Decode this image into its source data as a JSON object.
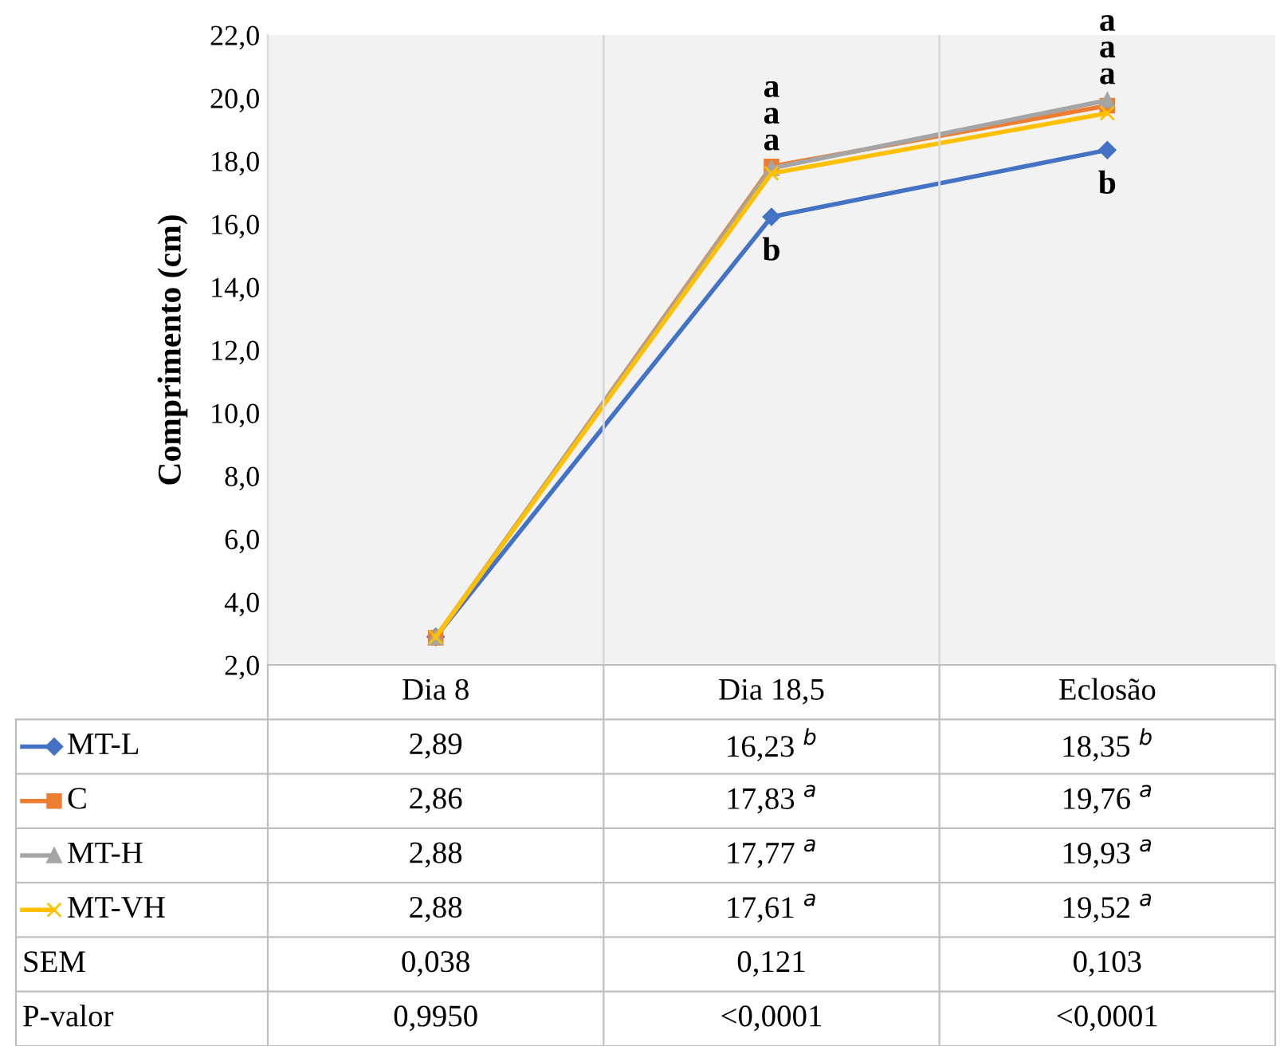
{
  "chart_data": {
    "type": "line",
    "ylabel": "Comprimento (cm)",
    "categories": [
      "Dia 8",
      "Dia 18,5",
      "Eclosão"
    ],
    "series": [
      {
        "name": "MT-L",
        "color": "#4472c4",
        "marker": "diamond",
        "values": [
          2.89,
          16.23,
          18.35
        ],
        "value_labels": [
          "2,89",
          "16,23 $^{b}$",
          "18,35 $^{b}$"
        ]
      },
      {
        "name": "C",
        "color": "#ed7d31",
        "marker": "square",
        "values": [
          2.86,
          17.83,
          19.76
        ],
        "value_labels": [
          "2,86",
          "17,83 $^{a}$",
          "19,76 $^{a}$"
        ]
      },
      {
        "name": "MT-H",
        "color": "#a5a5a5",
        "marker": "triangle",
        "values": [
          2.88,
          17.77,
          19.93
        ],
        "value_labels": [
          "2,88",
          "17,77 $^{a}$",
          "19,93 $^{a}$"
        ]
      },
      {
        "name": "MT-VH",
        "color": "#ffc000",
        "marker": "cross",
        "values": [
          2.88,
          17.61,
          19.52
        ],
        "value_labels": [
          "2,88",
          "17,61 $^{a}$",
          "19,52 $^{a}$"
        ]
      }
    ],
    "ylim": [
      2,
      22
    ],
    "yticks": [
      {
        "value": 2,
        "label": "2,0"
      },
      {
        "value": 4,
        "label": "4,0"
      },
      {
        "value": 6,
        "label": "6,0"
      },
      {
        "value": 8,
        "label": "8,0"
      },
      {
        "value": 10,
        "label": "10,0"
      },
      {
        "value": 12,
        "label": "12,0"
      },
      {
        "value": 14,
        "label": "14,0"
      },
      {
        "value": 16,
        "label": "16,0"
      },
      {
        "value": 18,
        "label": "18,0"
      },
      {
        "value": 20,
        "label": "20,0"
      },
      {
        "value": 22,
        "label": "22,0"
      }
    ],
    "grid": "x",
    "legend": "bottom",
    "line_style": "solid",
    "annotations": [
      "a",
      "a",
      "a",
      "b",
      "a",
      "a",
      "a",
      "b",
      "SEM",
      "0,038",
      "0,121",
      "0,103",
      "P-valor",
      "0,9950",
      "<0,0001",
      "<0,0001"
    ]
  }
}
